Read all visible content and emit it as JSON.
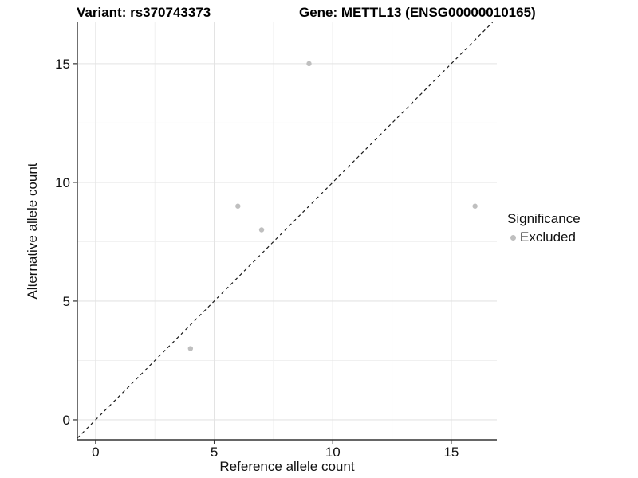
{
  "chart_data": {
    "type": "scatter",
    "title_left": "Variant: rs370743373",
    "title_right": "Gene: METTL13 (ENSG00000010165)",
    "xlabel": "Reference allele count",
    "ylabel": "Alternative allele count",
    "xlim": [
      -0.77,
      16.92
    ],
    "ylim": [
      -0.84,
      16.74
    ],
    "x_ticks": [
      0,
      5,
      10,
      15
    ],
    "y_ticks": [
      0,
      5,
      10,
      15
    ],
    "minor_ticks": [
      2.5,
      7.5,
      12.5
    ],
    "grid": "major+minor",
    "legend_position": "right",
    "identity_line": {
      "style": "dashed",
      "slope": 1,
      "intercept": 0
    },
    "series": [
      {
        "name": "Excluded",
        "points": [
          {
            "x": 4,
            "y": 3
          },
          {
            "x": 6,
            "y": 9
          },
          {
            "x": 7,
            "y": 8
          },
          {
            "x": 9,
            "y": 15
          },
          {
            "x": 16,
            "y": 9
          }
        ]
      }
    ],
    "legend": {
      "title": "Significance",
      "items": [
        {
          "label": "Excluded",
          "color": "#bfbfbf"
        }
      ]
    },
    "colors": {
      "point": "#bfbfbf",
      "grid_major": "#e3e3e3",
      "grid_minor": "#f0f0f0",
      "axis_line": "#333333",
      "identity_line": "#1a1a1a"
    }
  }
}
